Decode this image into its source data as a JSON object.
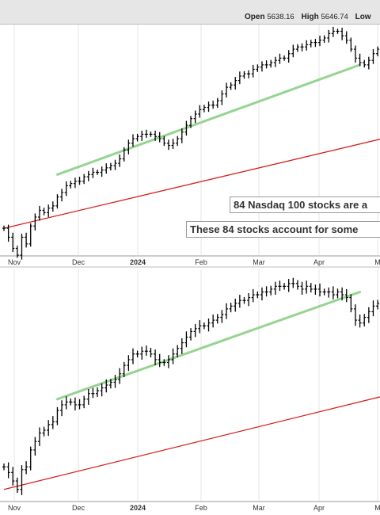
{
  "header": {
    "open_label": "Open",
    "open_value": "5638.16",
    "high_label": "High",
    "high_value": "5646.74",
    "low_label": "Low"
  },
  "annotations": {
    "note1": "84 Nasdaq 100 stocks are a",
    "note2": "These 84 stocks account for some"
  },
  "colors": {
    "trend": "#95d491",
    "moving_average": "#d62020",
    "bars": "#000000",
    "grid": "#e4e4e4"
  },
  "chart_data": [
    {
      "type": "ohlc",
      "x_tick_labels": [
        "Nov",
        "Dec",
        "2024",
        "Feb",
        "Mar",
        "Apr",
        "M"
      ],
      "x_tick_bold": [
        false,
        false,
        true,
        false,
        false,
        false,
        false
      ],
      "close": [
        92,
        88,
        83,
        80,
        88,
        85,
        93,
        97,
        100,
        99,
        101,
        102,
        106,
        108,
        111,
        112,
        113,
        113,
        115,
        116,
        117,
        117,
        118,
        119,
        120,
        121,
        123,
        127,
        130,
        132,
        133,
        134,
        134,
        134,
        133,
        132,
        130,
        129,
        130,
        132,
        135,
        138,
        141,
        143,
        145,
        146,
        147,
        147,
        149,
        152,
        155,
        156,
        158,
        160,
        161,
        161,
        163,
        164,
        165,
        165,
        166,
        167,
        168,
        168,
        170,
        172,
        173,
        173,
        174,
        175,
        175,
        176,
        177,
        179,
        180,
        180,
        178,
        176,
        172,
        168,
        166,
        165,
        167,
        170,
        172,
        172
      ],
      "trend_line": {
        "x": [
          12,
          80
        ],
        "y": [
          116,
          165
        ]
      },
      "moving_average": {
        "x": [
          0,
          85
        ],
        "y": [
          92,
          132
        ]
      },
      "legend": "none",
      "grid": true
    },
    {
      "type": "ohlc",
      "x_tick_labels": [
        "Nov",
        "Dec",
        "2024",
        "Feb",
        "Mar",
        "Apr",
        "M"
      ],
      "x_tick_bold": [
        false,
        false,
        true,
        false,
        false,
        false,
        false
      ],
      "close": [
        88,
        86,
        83,
        80,
        87,
        88,
        94,
        97,
        100,
        101,
        103,
        104,
        108,
        110,
        111,
        111,
        110,
        110,
        112,
        114,
        114,
        115,
        116,
        117,
        118,
        119,
        121,
        124,
        126,
        128,
        128,
        129,
        129,
        128,
        126,
        125,
        125,
        126,
        128,
        130,
        132,
        134,
        136,
        137,
        138,
        138,
        139,
        140,
        141,
        142,
        144,
        145,
        146,
        147,
        147,
        148,
        149,
        149,
        150,
        150,
        151,
        152,
        152,
        152,
        153,
        153,
        152,
        151,
        152,
        151,
        151,
        150,
        150,
        150,
        149,
        150,
        149,
        148,
        144,
        140,
        139,
        141,
        143,
        145,
        146,
        147
      ],
      "trend_line": {
        "x": [
          12,
          80
        ],
        "y": [
          112,
          150
        ]
      },
      "moving_average": {
        "x": [
          0,
          85
        ],
        "y": [
          80,
          113
        ]
      },
      "legend": "none",
      "grid": true
    }
  ]
}
